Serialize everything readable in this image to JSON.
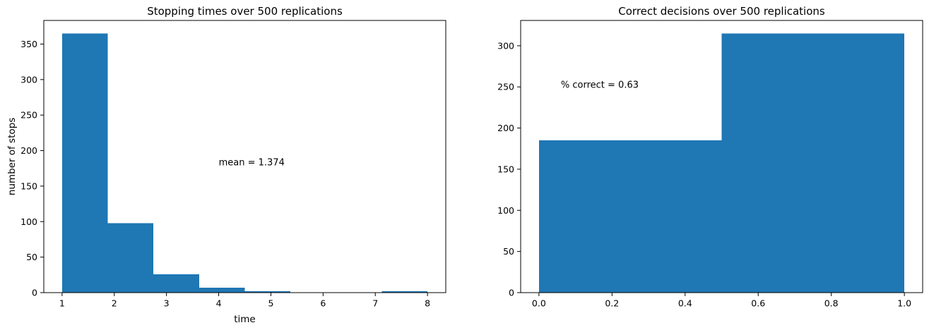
{
  "figure": {
    "background": "#ffffff",
    "bar_color": "#1f77b4",
    "axis_color": "#000000",
    "text_color": "#000000"
  },
  "chart_data": [
    {
      "type": "histogram",
      "title": "Stopping times over 500 replications",
      "xlabel": "time",
      "ylabel": "number of stops",
      "bins": {
        "start": 1,
        "width": 0.875,
        "counts": [
          365,
          98,
          26,
          7,
          2,
          0,
          0,
          2
        ]
      },
      "xticks": [
        "1",
        "2",
        "3",
        "4",
        "5",
        "6",
        "7",
        "8"
      ],
      "yticks": [
        "0",
        "50",
        "100",
        "150",
        "200",
        "250",
        "300",
        "350"
      ],
      "xlim": [
        0.65,
        8.35
      ],
      "ylim": [
        0,
        383.25
      ],
      "grid": false,
      "legend": null,
      "annotations": [
        {
          "text": "mean = 1.374",
          "x": 4.0,
          "y": 183
        }
      ]
    },
    {
      "type": "histogram",
      "title": "Correct decisions over 500 replications",
      "xlabel": "",
      "ylabel": "",
      "bins": {
        "start": 0,
        "width": 0.5,
        "counts": [
          185,
          315
        ]
      },
      "xticks": [
        "0.0",
        "0.2",
        "0.4",
        "0.6",
        "0.8",
        "1.0"
      ],
      "yticks": [
        "0",
        "50",
        "100",
        "150",
        "200",
        "250",
        "300"
      ],
      "xlim": [
        -0.05,
        1.05
      ],
      "ylim": [
        0,
        330.75
      ],
      "grid": false,
      "legend": null,
      "annotations": [
        {
          "text": "% correct = 0.63",
          "x": 0.06,
          "y": 252
        }
      ]
    }
  ]
}
